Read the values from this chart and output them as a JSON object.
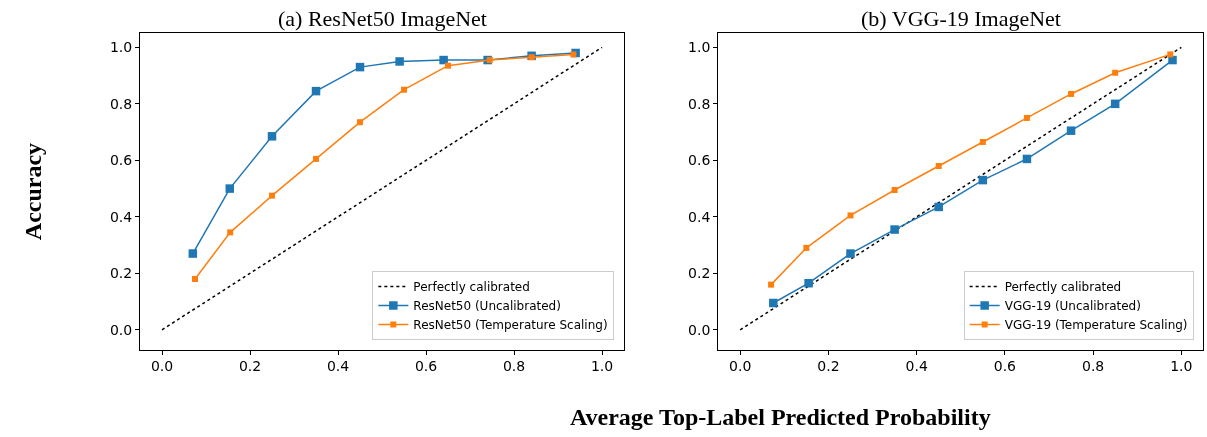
{
  "chart_data": [
    {
      "type": "line",
      "title": "(a) ResNet50 ImageNet",
      "ylabel": "Accuracy",
      "xlim": [
        -0.05,
        1.05
      ],
      "ylim": [
        -0.07,
        1.05
      ],
      "xticks": [
        {
          "value": 0.0,
          "label": "0.0"
        },
        {
          "value": 0.2,
          "label": "0.2"
        },
        {
          "value": 0.4,
          "label": "0.4"
        },
        {
          "value": 0.6,
          "label": "0.6"
        },
        {
          "value": 0.8,
          "label": "0.8"
        },
        {
          "value": 1.0,
          "label": "1.0"
        }
      ],
      "yticks": [
        {
          "value": 0.0,
          "label": "0.0"
        },
        {
          "value": 0.2,
          "label": "0.2"
        },
        {
          "value": 0.4,
          "label": "0.4"
        },
        {
          "value": 0.6,
          "label": "0.6"
        },
        {
          "value": 0.8,
          "label": "0.8"
        },
        {
          "value": 1.0,
          "label": "1.0"
        }
      ],
      "legend": "bottom right",
      "marker": "square",
      "series": [
        {
          "name": "Perfectly calibrated",
          "color": "#000000",
          "x": [
            0,
            1
          ],
          "values": [
            0,
            1
          ],
          "line_style": "dotted",
          "marker": "none"
        },
        {
          "name": "ResNet50 (Uncalibrated)",
          "color": "#1f77b4",
          "x": [
            0.07,
            0.154,
            0.25,
            0.35,
            0.45,
            0.54,
            0.64,
            0.74,
            0.84,
            0.94
          ],
          "values": [
            0.27,
            0.5,
            0.685,
            0.845,
            0.93,
            0.95,
            0.955,
            0.955,
            0.97,
            0.98
          ]
        },
        {
          "name": "ResNet50 (Temperature Scaling)",
          "color": "#ff7f0e",
          "x": [
            0.075,
            0.155,
            0.25,
            0.35,
            0.45,
            0.55,
            0.65,
            0.745,
            0.84,
            0.935
          ],
          "values": [
            0.18,
            0.345,
            0.475,
            0.605,
            0.735,
            0.85,
            0.935,
            0.955,
            0.965,
            0.975
          ]
        }
      ]
    },
    {
      "type": "line",
      "title": "(b) VGG-19 ImageNet",
      "xlabel": "Average Top-Label Predicted Probability",
      "xlim": [
        -0.05,
        1.05
      ],
      "ylim": [
        -0.07,
        1.05
      ],
      "xticks": [
        {
          "value": 0.0,
          "label": "0.0"
        },
        {
          "value": 0.2,
          "label": "0.2"
        },
        {
          "value": 0.4,
          "label": "0.4"
        },
        {
          "value": 0.6,
          "label": "0.6"
        },
        {
          "value": 0.8,
          "label": "0.8"
        },
        {
          "value": 1.0,
          "label": "1.0"
        }
      ],
      "yticks": [
        {
          "value": 0.0,
          "label": "0.0"
        },
        {
          "value": 0.2,
          "label": "0.2"
        },
        {
          "value": 0.4,
          "label": "0.4"
        },
        {
          "value": 0.6,
          "label": "0.6"
        },
        {
          "value": 0.8,
          "label": "0.8"
        },
        {
          "value": 1.0,
          "label": "1.0"
        }
      ],
      "legend": "bottom right",
      "marker": "square",
      "series": [
        {
          "name": "Perfectly calibrated",
          "color": "#000000",
          "x": [
            0,
            1
          ],
          "values": [
            0,
            1
          ],
          "line_style": "dotted",
          "marker": "none"
        },
        {
          "name": "VGG-19 (Uncalibrated)",
          "color": "#1f77b4",
          "x": [
            0.075,
            0.155,
            0.25,
            0.35,
            0.45,
            0.55,
            0.65,
            0.75,
            0.85,
            0.98
          ],
          "values": [
            0.095,
            0.165,
            0.27,
            0.355,
            0.435,
            0.53,
            0.605,
            0.705,
            0.8,
            0.955
          ]
        },
        {
          "name": "VGG-19 (Temperature Scaling)",
          "color": "#ff7f0e",
          "x": [
            0.07,
            0.15,
            0.25,
            0.35,
            0.45,
            0.55,
            0.65,
            0.75,
            0.85,
            0.975
          ],
          "values": [
            0.16,
            0.29,
            0.405,
            0.495,
            0.58,
            0.665,
            0.75,
            0.835,
            0.91,
            0.975
          ]
        }
      ]
    }
  ]
}
